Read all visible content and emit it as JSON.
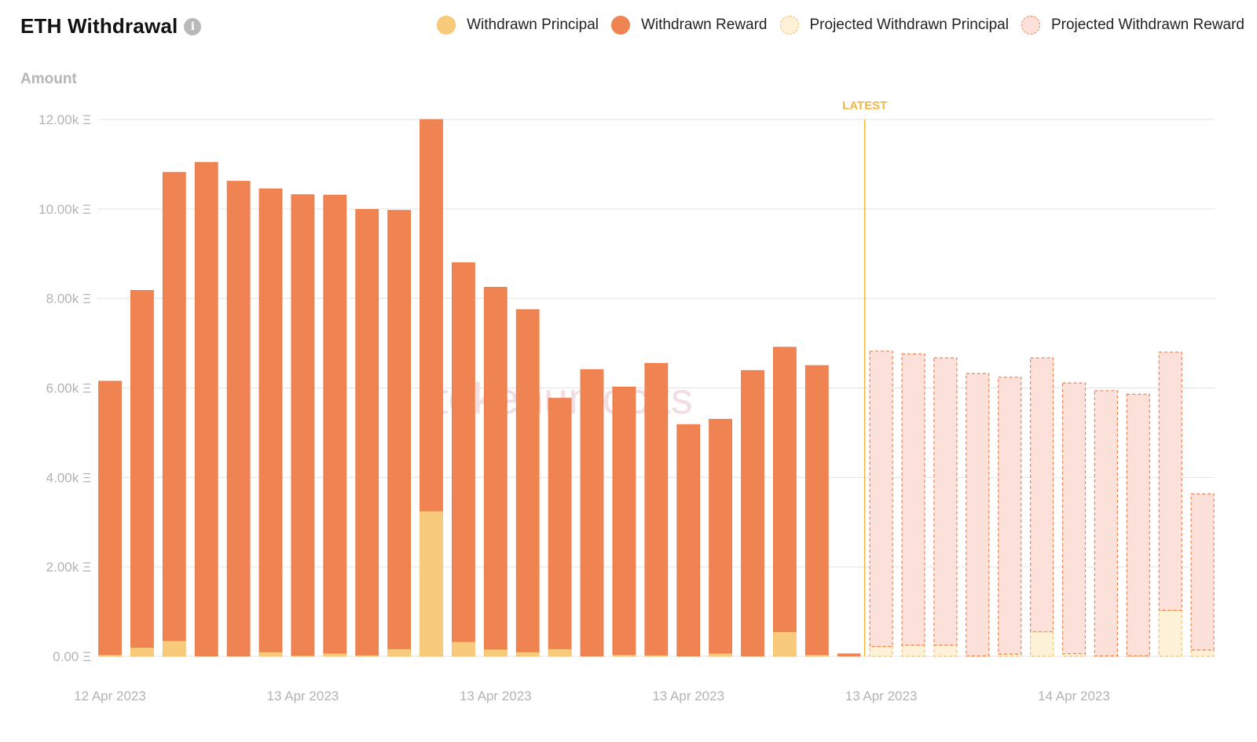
{
  "header": {
    "title": "ETH Withdrawal",
    "info_icon": "info-icon"
  },
  "legend": [
    {
      "label": "Withdrawn Principal",
      "fill": "#f7cb7b",
      "stroke": "#f3c26a",
      "dashed": false
    },
    {
      "label": "Withdrawn Reward",
      "fill": "#ef8352",
      "stroke": "#ef8352",
      "dashed": false
    },
    {
      "label": "Projected Withdrawn Principal",
      "fill": "#fdf1d8",
      "stroke": "#f3c26a",
      "dashed": true
    },
    {
      "label": "Projected Withdrawn Reward",
      "fill": "#fbe1d9",
      "stroke": "#ef8352",
      "dashed": true
    }
  ],
  "watermark": "tokenunlocks",
  "chart_data": {
    "type": "bar",
    "stacked": true,
    "title": "ETH Withdrawal",
    "ylabel": "Amount",
    "ylim": [
      0,
      12000
    ],
    "y_ticks": [
      {
        "value": 0,
        "label": "0.00 Ξ"
      },
      {
        "value": 2000,
        "label": "2.00k Ξ"
      },
      {
        "value": 4000,
        "label": "4.00k Ξ"
      },
      {
        "value": 6000,
        "label": "6.00k Ξ"
      },
      {
        "value": 8000,
        "label": "8.00k Ξ"
      },
      {
        "value": 10000,
        "label": "10.00k Ξ"
      },
      {
        "value": 12000,
        "label": "12.00k Ξ"
      }
    ],
    "x_ticks": [
      {
        "index": 0,
        "label": "12 Apr 2023"
      },
      {
        "index": 6,
        "label": "13 Apr 2023"
      },
      {
        "index": 12,
        "label": "13 Apr 2023"
      },
      {
        "index": 18,
        "label": "13 Apr 2023"
      },
      {
        "index": 24,
        "label": "13 Apr 2023"
      },
      {
        "index": 30,
        "label": "14 Apr 2023"
      }
    ],
    "latest_marker": {
      "label": "LATEST",
      "position_index": 23.5
    },
    "grid": true,
    "legend_position": "top-right",
    "series": [
      {
        "name": "Withdrawn Principal",
        "color": "#f7cb7b",
        "values": [
          40,
          200,
          350,
          10,
          10,
          100,
          20,
          70,
          30,
          170,
          3250,
          330,
          160,
          100,
          170,
          10,
          40,
          30,
          10,
          70,
          10,
          550,
          40,
          60,
          null,
          null,
          null,
          null,
          null,
          null,
          null,
          null,
          null,
          null,
          null
        ]
      },
      {
        "name": "Withdrawn Reward",
        "color": "#ef8352",
        "values": [
          6110,
          7980,
          10470,
          11030,
          10610,
          10350,
          10300,
          10240,
          9960,
          9800,
          8750,
          8470,
          8090,
          7650,
          5600,
          6400,
          5980,
          6520,
          5170,
          5230,
          6380,
          6360,
          6460,
          0,
          null,
          null,
          null,
          null,
          null,
          null,
          null,
          null,
          null,
          null,
          null
        ]
      },
      {
        "name": "Projected Withdrawn Principal",
        "color": "#fdf1d8",
        "values": [
          null,
          null,
          null,
          null,
          null,
          null,
          null,
          null,
          null,
          null,
          null,
          null,
          null,
          null,
          null,
          null,
          null,
          null,
          null,
          null,
          null,
          null,
          null,
          null,
          220,
          250,
          250,
          10,
          50,
          550,
          60,
          10,
          10,
          1030,
          140
        ]
      },
      {
        "name": "Projected Withdrawn Reward",
        "color": "#fbe1d9",
        "values": [
          null,
          null,
          null,
          null,
          null,
          null,
          null,
          null,
          null,
          null,
          null,
          null,
          null,
          null,
          null,
          null,
          null,
          null,
          null,
          null,
          null,
          null,
          null,
          null,
          6600,
          6510,
          6420,
          6310,
          6190,
          6120,
          6050,
          5930,
          5850,
          5770,
          3490
        ]
      }
    ]
  }
}
